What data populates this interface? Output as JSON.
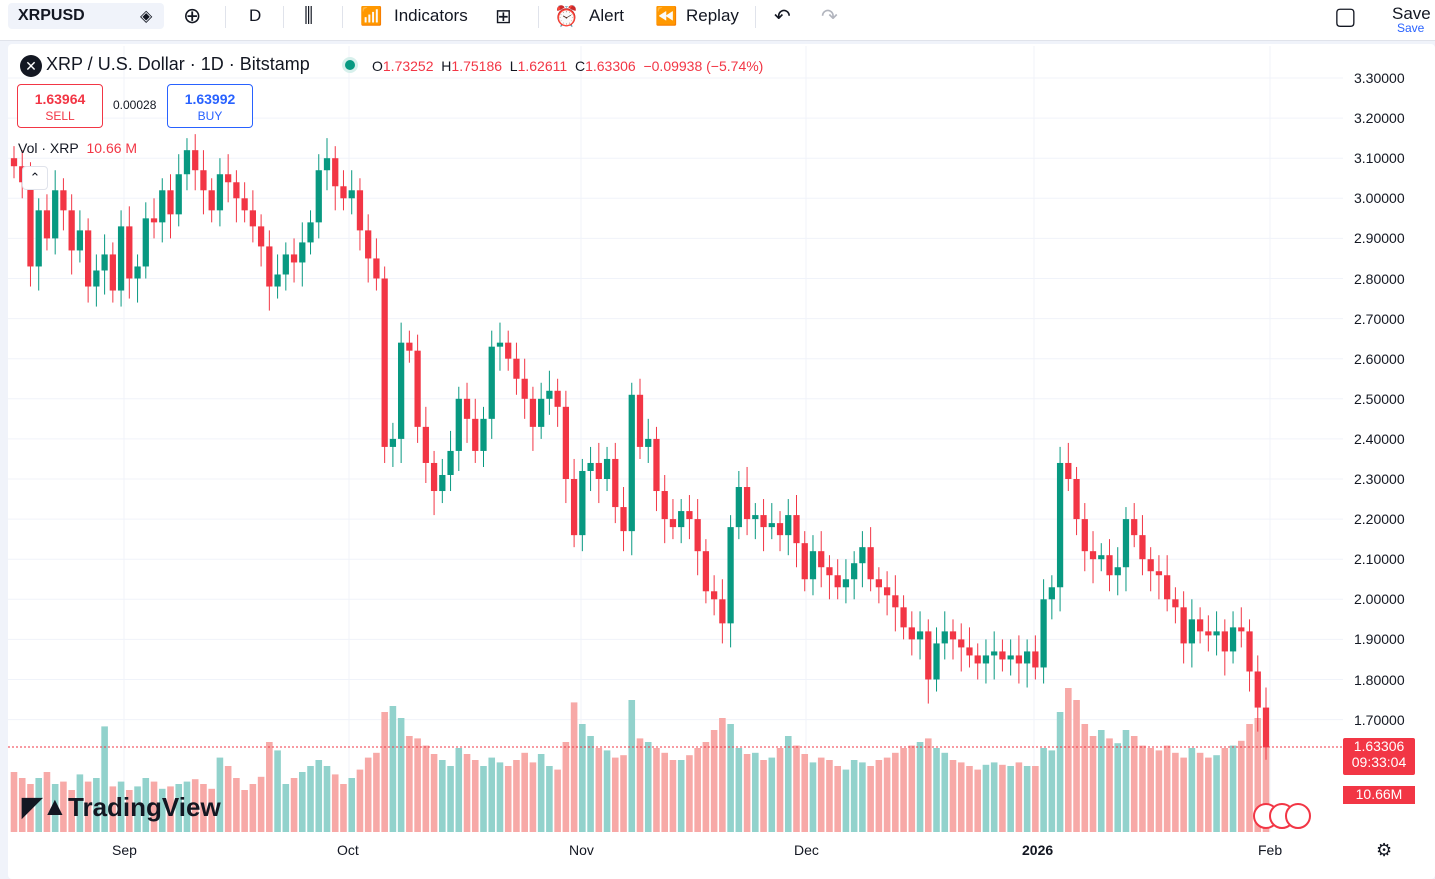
{
  "toolbar": {
    "symbol": "XRPUSD",
    "interval": "D",
    "indicators_label": "Indicators",
    "alert_label": "Alert",
    "replay_label": "Replay",
    "save_label": "Save",
    "save_sublabel": "Save"
  },
  "legend": {
    "title": "XRP / U.S. Dollar · 1D · Bitstamp",
    "o_label": "O",
    "o": "1.73252",
    "h_label": "H",
    "h": "1.75186",
    "l_label": "L",
    "l": "1.62611",
    "c_label": "C",
    "c": "1.63306",
    "change": "−0.09938 (−5.74%)"
  },
  "trade": {
    "sell_price": "1.63964",
    "sell_label": "SELL",
    "spread": "0.00028",
    "buy_price": "1.63992",
    "buy_label": "BUY"
  },
  "volume_legend": {
    "label": "Vol · XRP",
    "value": "10.66 M"
  },
  "price_axis": [
    "3.30000",
    "3.20000",
    "3.10000",
    "3.00000",
    "2.90000",
    "2.80000",
    "2.70000",
    "2.60000",
    "2.50000",
    "2.40000",
    "2.30000",
    "2.20000",
    "2.10000",
    "2.00000",
    "1.90000",
    "1.80000",
    "1.70000"
  ],
  "current_price": {
    "price": "1.63306",
    "countdown": "09:33:04",
    "volume": "10.66M"
  },
  "time_axis": [
    "Sep",
    "Oct",
    "Nov",
    "Dec",
    "2026",
    "Feb"
  ],
  "watermark": "TradingView",
  "colors": {
    "up": "#089981",
    "down": "#f23645",
    "vol_up": "#92d2cc",
    "vol_down": "#f7a9a7"
  },
  "chart_data": {
    "type": "candlestick",
    "ylim": [
      1.6,
      3.33
    ],
    "closes": [
      3.08,
      3.04,
      2.83,
      2.97,
      2.9,
      3.02,
      2.97,
      2.87,
      2.92,
      2.78,
      2.82,
      2.86,
      2.77,
      2.93,
      2.8,
      2.83,
      2.95,
      2.94,
      3.02,
      2.96,
      3.06,
      3.12,
      3.07,
      3.02,
      2.97,
      3.06,
      3.04,
      3.0,
      2.97,
      2.93,
      2.88,
      2.78,
      2.81,
      2.86,
      2.84,
      2.89,
      2.94,
      3.07,
      3.1,
      3.03,
      3.0,
      3.02,
      2.92,
      2.85,
      2.8,
      2.38,
      2.4,
      2.64,
      2.62,
      2.43,
      2.34,
      2.27,
      2.31,
      2.37,
      2.5,
      2.45,
      2.37,
      2.45,
      2.63,
      2.64,
      2.6,
      2.55,
      2.5,
      2.43,
      2.5,
      2.52,
      2.48,
      2.3,
      2.16,
      2.32,
      2.34,
      2.3,
      2.35,
      2.23,
      2.17,
      2.51,
      2.38,
      2.4,
      2.27,
      2.2,
      2.18,
      2.22,
      2.2,
      2.12,
      2.02,
      2.0,
      1.94,
      2.18,
      2.28,
      2.2,
      2.21,
      2.18,
      2.19,
      2.16,
      2.21,
      2.14,
      2.05,
      2.12,
      2.08,
      2.06,
      2.03,
      2.05,
      2.09,
      2.13,
      2.05,
      2.03,
      2.01,
      1.98,
      1.93,
      1.9,
      1.92,
      1.8,
      1.89,
      1.92,
      1.9,
      1.88,
      1.86,
      1.84,
      1.86,
      1.87,
      1.85,
      1.86,
      1.84,
      1.87,
      1.83,
      2.0,
      2.03,
      2.34,
      2.3,
      2.2,
      2.12,
      2.1,
      2.11,
      2.06,
      2.08,
      2.2,
      2.16,
      2.1,
      2.07,
      2.06,
      2.0,
      1.98,
      1.89,
      1.95,
      1.92,
      1.91,
      1.92,
      1.87,
      1.93,
      1.92,
      1.82,
      1.73,
      1.63
    ],
    "volumes": [
      0.5,
      0.45,
      0.4,
      0.45,
      0.5,
      0.4,
      0.42,
      0.35,
      0.48,
      0.42,
      0.45,
      0.88,
      0.38,
      0.42,
      0.35,
      0.38,
      0.45,
      0.42,
      0.36,
      0.38,
      0.4,
      0.42,
      0.44,
      0.4,
      0.36,
      0.62,
      0.55,
      0.45,
      0.35,
      0.4,
      0.46,
      0.75,
      0.68,
      0.4,
      0.45,
      0.5,
      0.55,
      0.6,
      0.55,
      0.48,
      0.4,
      0.45,
      0.52,
      0.62,
      0.66,
      1.0,
      1.05,
      0.95,
      0.8,
      0.78,
      0.72,
      0.65,
      0.6,
      0.55,
      0.7,
      0.65,
      0.6,
      0.55,
      0.62,
      0.58,
      0.55,
      0.6,
      0.66,
      0.58,
      0.65,
      0.55,
      0.52,
      0.75,
      1.08,
      0.9,
      0.8,
      0.7,
      0.68,
      0.62,
      0.64,
      1.1,
      0.78,
      0.75,
      0.7,
      0.66,
      0.6,
      0.6,
      0.64,
      0.7,
      0.75,
      0.85,
      0.95,
      0.9,
      0.7,
      0.65,
      0.66,
      0.6,
      0.62,
      0.7,
      0.8,
      0.72,
      0.65,
      0.58,
      0.62,
      0.6,
      0.55,
      0.52,
      0.6,
      0.58,
      0.55,
      0.6,
      0.62,
      0.66,
      0.7,
      0.72,
      0.75,
      0.78,
      0.7,
      0.66,
      0.6,
      0.58,
      0.55,
      0.52,
      0.56,
      0.58,
      0.56,
      0.55,
      0.58,
      0.55,
      0.55,
      0.7,
      0.68,
      1.0,
      1.2,
      1.1,
      0.9,
      0.8,
      0.85,
      0.78,
      0.74,
      0.85,
      0.8,
      0.72,
      0.7,
      0.68,
      0.72,
      0.66,
      0.62,
      0.7,
      0.66,
      0.62,
      0.64,
      0.7,
      0.72,
      0.76,
      0.9,
      0.95,
      0.7
    ]
  }
}
